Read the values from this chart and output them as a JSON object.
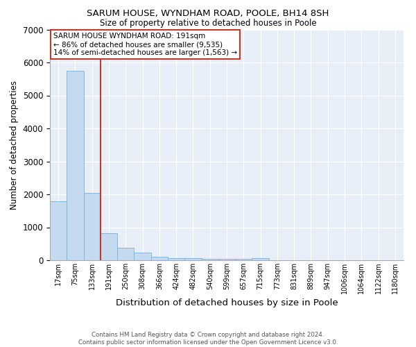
{
  "title1": "SARUM HOUSE, WYNDHAM ROAD, POOLE, BH14 8SH",
  "title2": "Size of property relative to detached houses in Poole",
  "xlabel": "Distribution of detached houses by size in Poole",
  "ylabel": "Number of detached properties",
  "categories": [
    "17sqm",
    "75sqm",
    "133sqm",
    "191sqm",
    "250sqm",
    "308sqm",
    "366sqm",
    "424sqm",
    "482sqm",
    "540sqm",
    "599sqm",
    "657sqm",
    "715sqm",
    "773sqm",
    "831sqm",
    "889sqm",
    "947sqm",
    "1006sqm",
    "1064sqm",
    "1122sqm",
    "1180sqm"
  ],
  "values": [
    1780,
    5750,
    2050,
    830,
    370,
    230,
    110,
    65,
    55,
    45,
    40,
    35,
    65,
    0,
    0,
    0,
    0,
    0,
    0,
    0,
    0
  ],
  "bar_color": "#c5d9f0",
  "bar_edge_color": "#7bafd4",
  "vline_color": "#c0392b",
  "vline_x_idx": 3,
  "legend_text_line1": "SARUM HOUSE WYNDHAM ROAD: 191sqm",
  "legend_text_line2": "← 86% of detached houses are smaller (9,535)",
  "legend_text_line3": "14% of semi-detached houses are larger (1,563) →",
  "legend_box_color": "#c0392b",
  "background_color": "#e8eef8",
  "ylim": [
    0,
    7000
  ],
  "yticks": [
    0,
    1000,
    2000,
    3000,
    4000,
    5000,
    6000,
    7000
  ],
  "footer_line1": "Contains HM Land Registry data © Crown copyright and database right 2024.",
  "footer_line2": "Contains public sector information licensed under the Open Government Licence v3.0."
}
